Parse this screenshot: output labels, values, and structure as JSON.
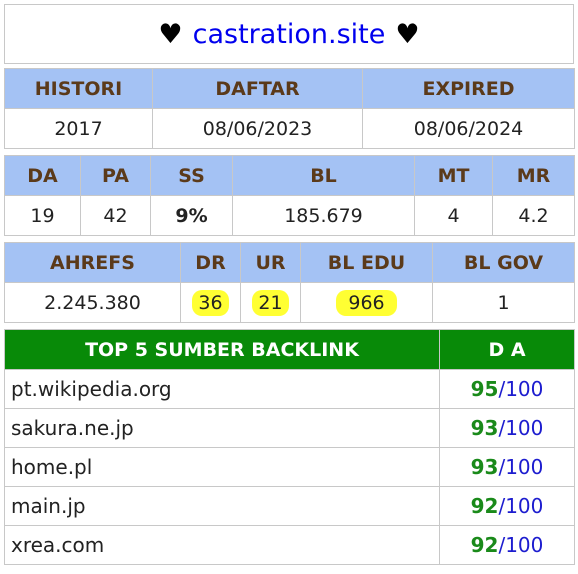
{
  "header": {
    "heart_left": "♥",
    "site": "castration.site",
    "heart_right": "♥"
  },
  "table1": {
    "headers": [
      "HISTORI",
      "DAFTAR",
      "EXPIRED"
    ],
    "values": [
      "2017",
      "08/06/2023",
      "08/06/2024"
    ]
  },
  "table2": {
    "headers": [
      "DA",
      "PA",
      "SS",
      "BL",
      "MT",
      "MR"
    ],
    "values": [
      "19",
      "42",
      "9%",
      "185.679",
      "4",
      "4.2"
    ]
  },
  "table3": {
    "headers": [
      "AHREFS",
      "DR",
      "UR",
      "BL EDU",
      "BL GOV"
    ],
    "values": [
      "2.245.380",
      "36",
      "21",
      "966",
      "1"
    ]
  },
  "backlinks": {
    "header_left": "TOP 5 SUMBER BACKLINK",
    "header_right": "D A",
    "rows": [
      {
        "domain": "pt.wikipedia.org",
        "da": "95",
        "max": "/100"
      },
      {
        "domain": "sakura.ne.jp",
        "da": "93",
        "max": "/100"
      },
      {
        "domain": "home.pl",
        "da": "93",
        "max": "/100"
      },
      {
        "domain": "main.jp",
        "da": "92",
        "max": "/100"
      },
      {
        "domain": "xrea.com",
        "da": "92",
        "max": "/100"
      }
    ]
  },
  "colors": {
    "header_bg": "#a4c2f4",
    "header_text": "#5b3a1a",
    "backlink_header_bg": "#088a08",
    "highlight": "#ffff33",
    "da_green": "#1a8a1a",
    "link_blue": "#0000ee"
  }
}
